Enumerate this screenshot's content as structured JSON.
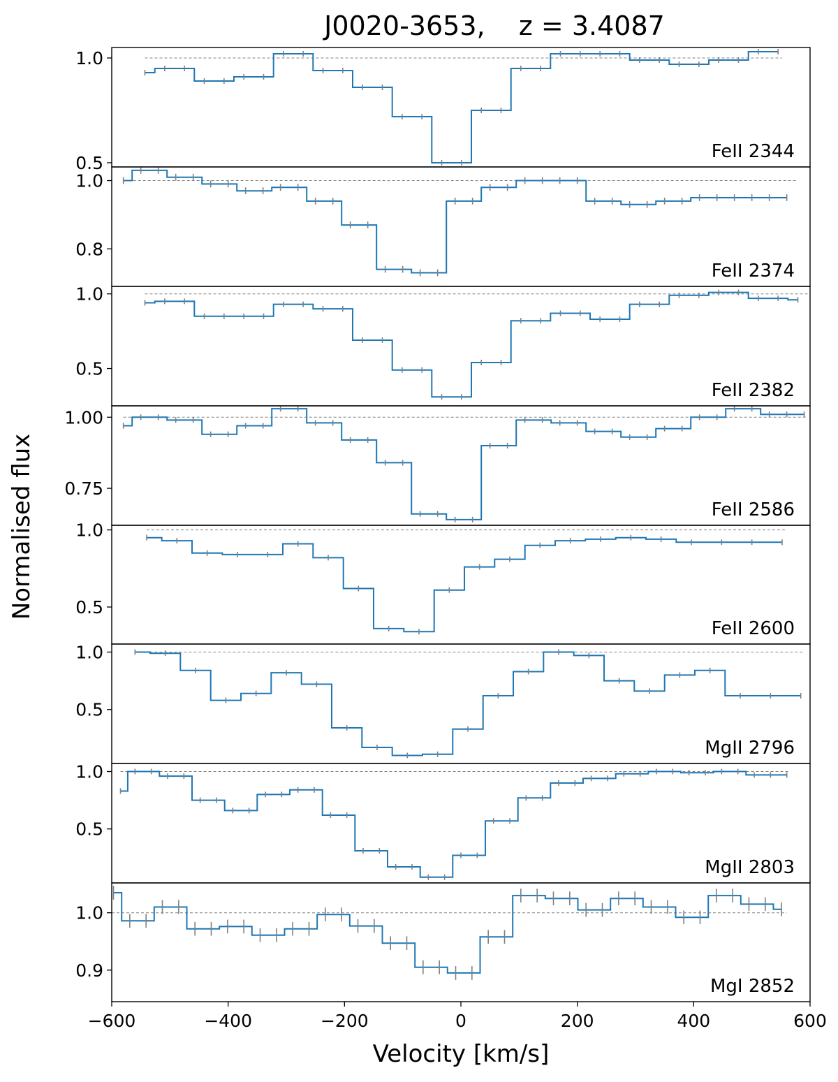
{
  "chart_data": {
    "type": "line",
    "title": "J0020-3653,    z = 3.4087",
    "xlabel": "Velocity [km/s]",
    "ylabel": "Normalised flux",
    "xlim": [
      -600,
      600
    ],
    "x_ticks": [
      -600,
      -400,
      -200,
      0,
      200,
      400,
      600
    ],
    "x_tick_labels": [
      "−600",
      "−400",
      "−200",
      "0",
      "200",
      "400",
      "600"
    ],
    "colors": {
      "spectrum": "#1f77b4",
      "errorbar": "#808080",
      "continuum": "#808080",
      "axes": "#000000"
    },
    "continuum_level": 1.0,
    "panels": [
      {
        "label": "FeII 2344",
        "ylim": [
          0.48,
          1.05
        ],
        "y_ticks": [
          0.5,
          1.0
        ],
        "y_tick_labels": [
          "0.5",
          "1.0"
        ],
        "continuum_x": [
          -543,
          552
        ],
        "x": [
          -543,
          -509,
          -475,
          -441,
          -407,
          -373,
          -339,
          -305,
          -271,
          -237,
          -203,
          -169,
          -135,
          -101,
          -67,
          -33,
          1,
          35,
          69,
          103,
          137,
          171,
          205,
          239,
          273,
          307,
          341,
          375,
          409,
          443,
          477,
          511,
          545
        ],
        "y": [
          0.93,
          0.95,
          0.95,
          0.89,
          0.89,
          0.91,
          0.91,
          1.02,
          1.02,
          0.94,
          0.94,
          0.86,
          0.86,
          0.72,
          0.72,
          0.5,
          0.5,
          0.75,
          0.75,
          0.95,
          0.95,
          1.02,
          1.02,
          1.02,
          1.02,
          0.99,
          0.99,
          0.97,
          0.97,
          0.99,
          0.99,
          1.03,
          1.03
        ],
        "err": [
          0.01,
          0.01,
          0.01,
          0.01,
          0.01,
          0.01,
          0.01,
          0.01,
          0.01,
          0.01,
          0.01,
          0.01,
          0.01,
          0.01,
          0.01,
          0.01,
          0.01,
          0.01,
          0.01,
          0.01,
          0.01,
          0.01,
          0.01,
          0.01,
          0.01,
          0.01,
          0.01,
          0.01,
          0.01,
          0.01,
          0.01,
          0.01,
          0.01
        ]
      },
      {
        "label": "FeII 2374",
        "ylim": [
          0.69,
          1.04
        ],
        "y_ticks": [
          0.8,
          1.0
        ],
        "y_tick_labels": [
          "0.8",
          "1.0"
        ],
        "continuum_x": [
          -580,
          576
        ],
        "x": [
          -580,
          -550,
          -520,
          -490,
          -460,
          -430,
          -400,
          -370,
          -340,
          -310,
          -280,
          -250,
          -220,
          -190,
          -160,
          -130,
          -100,
          -70,
          -40,
          -10,
          20,
          50,
          80,
          110,
          140,
          170,
          200,
          230,
          260,
          290,
          320,
          350,
          380,
          410,
          440,
          470,
          500,
          530,
          560
        ],
        "y": [
          1.0,
          1.03,
          1.03,
          1.01,
          1.01,
          0.99,
          0.99,
          0.97,
          0.97,
          0.98,
          0.98,
          0.94,
          0.94,
          0.87,
          0.87,
          0.74,
          0.74,
          0.73,
          0.73,
          0.94,
          0.94,
          0.98,
          0.98,
          1.0,
          1.0,
          1.0,
          1.0,
          0.94,
          0.94,
          0.93,
          0.93,
          0.94,
          0.94,
          0.95,
          0.95,
          0.95,
          0.95,
          0.95,
          0.95
        ],
        "err": [
          0.01,
          0.01,
          0.01,
          0.01,
          0.01,
          0.01,
          0.01,
          0.01,
          0.01,
          0.01,
          0.01,
          0.01,
          0.01,
          0.01,
          0.01,
          0.01,
          0.01,
          0.01,
          0.01,
          0.01,
          0.01,
          0.01,
          0.01,
          0.01,
          0.01,
          0.01,
          0.01,
          0.01,
          0.01,
          0.01,
          0.01,
          0.01,
          0.01,
          0.01,
          0.01,
          0.01,
          0.01,
          0.01,
          0.01
        ]
      },
      {
        "label": "FeII 2382",
        "ylim": [
          0.25,
          1.05
        ],
        "y_ticks": [
          0.5,
          1.0
        ],
        "y_tick_labels": [
          "0.5",
          "1.0"
        ],
        "continuum_x": [
          -543,
          600
        ],
        "x": [
          -543,
          -509,
          -475,
          -441,
          -407,
          -373,
          -339,
          -305,
          -271,
          -237,
          -203,
          -169,
          -135,
          -101,
          -67,
          -33,
          1,
          35,
          69,
          103,
          137,
          171,
          205,
          239,
          273,
          307,
          341,
          375,
          409,
          443,
          477,
          511,
          545,
          579
        ],
        "y": [
          0.94,
          0.95,
          0.95,
          0.85,
          0.85,
          0.85,
          0.85,
          0.93,
          0.93,
          0.9,
          0.9,
          0.69,
          0.69,
          0.49,
          0.49,
          0.31,
          0.31,
          0.54,
          0.54,
          0.82,
          0.82,
          0.87,
          0.87,
          0.83,
          0.83,
          0.93,
          0.93,
          0.99,
          0.99,
          1.01,
          1.01,
          0.97,
          0.97,
          0.96
        ],
        "err": [
          0.01,
          0.01,
          0.01,
          0.01,
          0.01,
          0.01,
          0.01,
          0.01,
          0.01,
          0.01,
          0.01,
          0.01,
          0.01,
          0.01,
          0.01,
          0.01,
          0.01,
          0.01,
          0.01,
          0.01,
          0.01,
          0.01,
          0.01,
          0.01,
          0.01,
          0.01,
          0.01,
          0.01,
          0.01,
          0.01,
          0.01,
          0.01,
          0.01,
          0.01
        ]
      },
      {
        "label": "FeII 2586",
        "ylim": [
          0.62,
          1.04
        ],
        "y_ticks": [
          0.75,
          1.0
        ],
        "y_tick_labels": [
          "0.75",
          "1.00"
        ],
        "continuum_x": [
          -580,
          595
        ],
        "x": [
          -580,
          -550,
          -520,
          -490,
          -460,
          -430,
          -400,
          -370,
          -340,
          -310,
          -280,
          -250,
          -220,
          -190,
          -160,
          -130,
          -100,
          -70,
          -40,
          -10,
          20,
          50,
          80,
          110,
          140,
          170,
          200,
          230,
          260,
          290,
          320,
          350,
          380,
          410,
          440,
          470,
          500,
          530,
          560,
          590
        ],
        "y": [
          0.97,
          1.0,
          1.0,
          0.99,
          0.99,
          0.94,
          0.94,
          0.97,
          0.97,
          1.03,
          1.03,
          0.98,
          0.98,
          0.92,
          0.92,
          0.84,
          0.84,
          0.66,
          0.66,
          0.64,
          0.64,
          0.9,
          0.9,
          0.99,
          0.99,
          0.98,
          0.98,
          0.95,
          0.95,
          0.93,
          0.93,
          0.96,
          0.96,
          1.0,
          1.0,
          1.03,
          1.03,
          1.01,
          1.01,
          1.01
        ],
        "err": [
          0.01,
          0.01,
          0.01,
          0.01,
          0.01,
          0.01,
          0.01,
          0.01,
          0.01,
          0.01,
          0.01,
          0.01,
          0.01,
          0.01,
          0.01,
          0.01,
          0.01,
          0.01,
          0.01,
          0.01,
          0.01,
          0.01,
          0.01,
          0.01,
          0.01,
          0.01,
          0.01,
          0.01,
          0.01,
          0.01,
          0.01,
          0.01,
          0.01,
          0.01,
          0.01,
          0.01,
          0.01,
          0.01,
          0.01,
          0.01
        ]
      },
      {
        "label": "FeII 2600",
        "ylim": [
          0.26,
          1.03
        ],
        "y_ticks": [
          0.5,
          1.0
        ],
        "y_tick_labels": [
          "0.5",
          "1.0"
        ],
        "continuum_x": [
          -540,
          560
        ],
        "x": [
          -540,
          -488,
          -436,
          -384,
          -332,
          -280,
          -228,
          -176,
          -124,
          -72,
          -20,
          32,
          84,
          136,
          188,
          240,
          292,
          344,
          396,
          448,
          500,
          552
        ],
        "y": [
          0.95,
          0.93,
          0.85,
          0.84,
          0.84,
          0.91,
          0.82,
          0.62,
          0.36,
          0.34,
          0.61,
          0.76,
          0.81,
          0.9,
          0.93,
          0.94,
          0.95,
          0.94,
          0.92,
          0.92,
          0.92,
          0.92
        ],
        "err": [
          0.01,
          0.01,
          0.01,
          0.01,
          0.01,
          0.01,
          0.01,
          0.01,
          0.01,
          0.01,
          0.01,
          0.01,
          0.01,
          0.01,
          0.01,
          0.01,
          0.01,
          0.01,
          0.01,
          0.01,
          0.01,
          0.01
        ]
      },
      {
        "label": "MgII 2796",
        "ylim": [
          0.03,
          1.07
        ],
        "y_ticks": [
          0.5,
          1.0
        ],
        "y_tick_labels": [
          "0.5",
          "1.0"
        ],
        "continuum_x": [
          -560,
          590
        ],
        "x": [
          -560,
          -508,
          -456,
          -404,
          -352,
          -300,
          -248,
          -196,
          -144,
          -92,
          -40,
          12,
          64,
          116,
          168,
          220,
          272,
          324,
          376,
          428,
          480,
          532,
          584
        ],
        "y": [
          1.0,
          0.99,
          0.84,
          0.58,
          0.64,
          0.82,
          0.72,
          0.34,
          0.17,
          0.1,
          0.11,
          0.33,
          0.62,
          0.83,
          1.0,
          0.97,
          0.75,
          0.66,
          0.8,
          0.84,
          0.62,
          0.62,
          0.62
        ],
        "err": [
          0.01,
          0.01,
          0.01,
          0.01,
          0.01,
          0.01,
          0.01,
          0.01,
          0.01,
          0.01,
          0.01,
          0.01,
          0.01,
          0.01,
          0.01,
          0.01,
          0.01,
          0.01,
          0.01,
          0.01,
          0.01,
          0.01,
          0.01
        ]
      },
      {
        "label": "MgII 2803",
        "ylim": [
          0.03,
          1.07
        ],
        "y_ticks": [
          0.5,
          1.0
        ],
        "y_tick_labels": [
          "0.5",
          "1.0"
        ],
        "continuum_x": [
          -585,
          565
        ],
        "x": [
          -585,
          -560,
          -532,
          -504,
          -476,
          -448,
          -420,
          -392,
          -364,
          -336,
          -308,
          -280,
          -252,
          -224,
          -196,
          -168,
          -140,
          -112,
          -84,
          -56,
          -28,
          0,
          28,
          56,
          84,
          112,
          140,
          168,
          196,
          224,
          252,
          280,
          308,
          336,
          364,
          392,
          420,
          448,
          476,
          504,
          532,
          560
        ],
        "y": [
          0.83,
          1.0,
          1.0,
          0.96,
          0.96,
          0.75,
          0.75,
          0.66,
          0.66,
          0.8,
          0.8,
          0.84,
          0.84,
          0.62,
          0.62,
          0.31,
          0.31,
          0.17,
          0.17,
          0.08,
          0.08,
          0.27,
          0.27,
          0.57,
          0.57,
          0.77,
          0.77,
          0.9,
          0.9,
          0.94,
          0.94,
          0.98,
          0.98,
          1.0,
          1.0,
          0.99,
          0.99,
          1.0,
          1.0,
          0.97,
          0.97,
          0.97
        ],
        "err": [
          0.01,
          0.01,
          0.01,
          0.01,
          0.01,
          0.01,
          0.01,
          0.01,
          0.01,
          0.01,
          0.01,
          0.01,
          0.01,
          0.01,
          0.01,
          0.01,
          0.01,
          0.01,
          0.01,
          0.01,
          0.01,
          0.01,
          0.01,
          0.01,
          0.01,
          0.01,
          0.01,
          0.01,
          0.01,
          0.01,
          0.01,
          0.01,
          0.01,
          0.01,
          0.01,
          0.01,
          0.01,
          0.01,
          0.01,
          0.01,
          0.01,
          0.01
        ]
      },
      {
        "label": "MgI 2852",
        "ylim": [
          0.845,
          1.052
        ],
        "y_ticks": [
          0.9,
          1.0
        ],
        "y_tick_labels": [
          "0.9",
          "1.0"
        ],
        "continuum_x": [
          -600,
          560
        ],
        "x": [
          -597,
          -569,
          -541,
          -513,
          -485,
          -457,
          -429,
          -401,
          -373,
          -345,
          -317,
          -289,
          -261,
          -233,
          -205,
          -177,
          -149,
          -121,
          -93,
          -65,
          -37,
          -9,
          19,
          47,
          75,
          103,
          131,
          159,
          187,
          215,
          243,
          271,
          299,
          327,
          355,
          383,
          411,
          439,
          467,
          495,
          523,
          551
        ],
        "y": [
          1.035,
          0.986,
          0.986,
          1.01,
          1.01,
          0.972,
          0.972,
          0.976,
          0.976,
          0.961,
          0.961,
          0.972,
          0.972,
          0.997,
          0.997,
          0.977,
          0.977,
          0.947,
          0.947,
          0.905,
          0.905,
          0.895,
          0.895,
          0.958,
          0.958,
          1.03,
          1.03,
          1.025,
          1.025,
          1.005,
          1.005,
          1.025,
          1.025,
          1.01,
          1.01,
          0.992,
          0.992,
          1.03,
          1.03,
          1.015,
          1.015,
          1.006
        ],
        "err": [
          0.012,
          0.012,
          0.012,
          0.012,
          0.012,
          0.012,
          0.012,
          0.012,
          0.012,
          0.012,
          0.012,
          0.012,
          0.012,
          0.012,
          0.012,
          0.012,
          0.012,
          0.012,
          0.012,
          0.012,
          0.012,
          0.012,
          0.012,
          0.012,
          0.012,
          0.012,
          0.012,
          0.012,
          0.012,
          0.012,
          0.012,
          0.012,
          0.012,
          0.012,
          0.012,
          0.012,
          0.012,
          0.012,
          0.012,
          0.012,
          0.012,
          0.012
        ]
      }
    ]
  }
}
